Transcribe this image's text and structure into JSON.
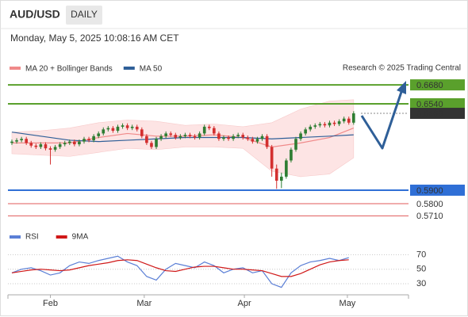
{
  "chart_data": {
    "type": "candlestick",
    "symbol": "AUD/USD",
    "period": "DAILY",
    "date": "Monday, May 5, 2025 10:08:16 AM CET",
    "credit": "Research © 2025 Trading Central",
    "up_color": "#2e7d32",
    "down_color": "#d32f2f",
    "xlim": [
      -0.82,
      82.4
    ],
    "ylim": [
      0.5665,
      0.6751
    ],
    "xticks": [
      {
        "value": 8,
        "label": "Feb"
      },
      {
        "value": 27.5,
        "label": "Mar"
      },
      {
        "value": 48.3,
        "label": "Apr"
      },
      {
        "value": 69.7,
        "label": "May"
      }
    ],
    "candles": [
      [
        0.625,
        0.6275,
        0.6235,
        0.626
      ],
      [
        0.626,
        0.6285,
        0.6245,
        0.627
      ],
      [
        0.627,
        0.6295,
        0.6255,
        0.628
      ],
      [
        0.628,
        0.6295,
        0.6235,
        0.625
      ],
      [
        0.625,
        0.6265,
        0.6215,
        0.623
      ],
      [
        0.623,
        0.6245,
        0.6205,
        0.622
      ],
      [
        0.622,
        0.6255,
        0.6205,
        0.624
      ],
      [
        0.624,
        0.6255,
        0.6195,
        0.621
      ],
      [
        0.621,
        0.6225,
        0.609,
        0.62
      ],
      [
        0.62,
        0.6235,
        0.6185,
        0.622
      ],
      [
        0.622,
        0.6255,
        0.6205,
        0.624
      ],
      [
        0.624,
        0.6265,
        0.6225,
        0.625
      ],
      [
        0.625,
        0.6275,
        0.6235,
        0.626
      ],
      [
        0.626,
        0.6275,
        0.6225,
        0.624
      ],
      [
        0.624,
        0.6275,
        0.6225,
        0.626
      ],
      [
        0.626,
        0.6295,
        0.6245,
        0.628
      ],
      [
        0.628,
        0.6295,
        0.6255,
        0.627
      ],
      [
        0.627,
        0.6315,
        0.6255,
        0.63
      ],
      [
        0.63,
        0.6335,
        0.6285,
        0.632
      ],
      [
        0.632,
        0.6365,
        0.6305,
        0.635
      ],
      [
        0.635,
        0.6375,
        0.6335,
        0.636
      ],
      [
        0.636,
        0.6375,
        0.6325,
        0.634
      ],
      [
        0.634,
        0.6385,
        0.6325,
        0.637
      ],
      [
        0.637,
        0.6395,
        0.6355,
        0.638
      ],
      [
        0.638,
        0.6395,
        0.6345,
        0.636
      ],
      [
        0.636,
        0.6385,
        0.6345,
        0.637
      ],
      [
        0.637,
        0.6385,
        0.6335,
        0.635
      ],
      [
        0.635,
        0.6365,
        0.6285,
        0.63
      ],
      [
        0.63,
        0.6315,
        0.6235,
        0.625
      ],
      [
        0.625,
        0.6265,
        0.6205,
        0.622
      ],
      [
        0.622,
        0.6295,
        0.6205,
        0.628
      ],
      [
        0.628,
        0.6315,
        0.6265,
        0.63
      ],
      [
        0.63,
        0.6335,
        0.6285,
        0.632
      ],
      [
        0.632,
        0.6335,
        0.6295,
        0.631
      ],
      [
        0.631,
        0.6325,
        0.6275,
        0.629
      ],
      [
        0.629,
        0.6315,
        0.6275,
        0.63
      ],
      [
        0.63,
        0.6325,
        0.6285,
        0.631
      ],
      [
        0.631,
        0.6325,
        0.6285,
        0.63
      ],
      [
        0.63,
        0.6315,
        0.6275,
        0.629
      ],
      [
        0.629,
        0.6335,
        0.6275,
        0.632
      ],
      [
        0.632,
        0.6385,
        0.6305,
        0.637
      ],
      [
        0.637,
        0.6385,
        0.6345,
        0.636
      ],
      [
        0.636,
        0.6375,
        0.6305,
        0.632
      ],
      [
        0.632,
        0.6335,
        0.6265,
        0.628
      ],
      [
        0.628,
        0.6305,
        0.6265,
        0.629
      ],
      [
        0.629,
        0.6305,
        0.6265,
        0.628
      ],
      [
        0.628,
        0.6315,
        0.6265,
        0.63
      ],
      [
        0.63,
        0.6325,
        0.6285,
        0.631
      ],
      [
        0.631,
        0.6325,
        0.6275,
        0.629
      ],
      [
        0.629,
        0.6305,
        0.6265,
        0.628
      ],
      [
        0.628,
        0.6295,
        0.6245,
        0.626
      ],
      [
        0.626,
        0.6295,
        0.6245,
        0.628
      ],
      [
        0.628,
        0.6315,
        0.6265,
        0.63
      ],
      [
        0.63,
        0.6315,
        0.6205,
        0.622
      ],
      [
        0.622,
        0.6235,
        0.6,
        0.606
      ],
      [
        0.606,
        0.609,
        0.591,
        0.597
      ],
      [
        0.597,
        0.603,
        0.5915,
        0.6
      ],
      [
        0.6,
        0.6135,
        0.5985,
        0.612
      ],
      [
        0.612,
        0.6215,
        0.6105,
        0.62
      ],
      [
        0.62,
        0.6295,
        0.6185,
        0.628
      ],
      [
        0.628,
        0.6335,
        0.6265,
        0.632
      ],
      [
        0.632,
        0.6365,
        0.6305,
        0.635
      ],
      [
        0.635,
        0.6385,
        0.6335,
        0.637
      ],
      [
        0.637,
        0.6395,
        0.6355,
        0.638
      ],
      [
        0.638,
        0.6405,
        0.6365,
        0.639
      ],
      [
        0.639,
        0.6405,
        0.6365,
        0.638
      ],
      [
        0.638,
        0.6415,
        0.6365,
        0.64
      ],
      [
        0.64,
        0.6415,
        0.6375,
        0.639
      ],
      [
        0.639,
        0.6425,
        0.6375,
        0.641
      ],
      [
        0.641,
        0.6445,
        0.6395,
        0.643
      ],
      [
        0.643,
        0.6445,
        0.6385,
        0.64
      ],
      [
        0.64,
        0.6485,
        0.6385,
        0.6469
      ]
    ],
    "bands": {
      "color": "#fde4e4",
      "x": [
        0,
        6,
        12,
        18,
        24,
        30,
        36,
        42,
        48,
        54,
        60,
        66,
        71
      ],
      "upper": [
        0.633,
        0.634,
        0.636,
        0.64,
        0.642,
        0.641,
        0.638,
        0.639,
        0.637,
        0.64,
        0.65,
        0.656,
        0.657
      ],
      "lower": [
        0.617,
        0.616,
        0.615,
        0.618,
        0.621,
        0.62,
        0.622,
        0.622,
        0.621,
        0.604,
        0.6,
        0.602,
        0.614
      ]
    },
    "series": [
      {
        "name": "MA 20 + Bollinger Bands",
        "color": "#f08a8a",
        "x": [
          0,
          6,
          12,
          18,
          24,
          30,
          36,
          42,
          48,
          54,
          60,
          66,
          71
        ],
        "values": [
          0.625,
          0.625,
          0.625,
          0.629,
          0.632,
          0.63,
          0.63,
          0.631,
          0.629,
          0.622,
          0.625,
          0.629,
          0.636
        ]
      },
      {
        "name": "MA 50",
        "color": "#2f5f98",
        "x": [
          0,
          6,
          12,
          18,
          24,
          30,
          36,
          42,
          48,
          54,
          60,
          66,
          71
        ],
        "values": [
          0.633,
          0.63,
          0.627,
          0.626,
          0.627,
          0.628,
          0.629,
          0.629,
          0.629,
          0.628,
          0.629,
          0.63,
          0.631
        ]
      }
    ],
    "levels": [
      {
        "value": 0.668,
        "label": "0.6680",
        "color": "#5aa02c",
        "box": true
      },
      {
        "value": 0.654,
        "label": "0.6540",
        "color": "#5aa02c",
        "box": true
      },
      {
        "value": 0.59,
        "label": "0.5900",
        "color": "#2f6fd6",
        "box": true
      },
      {
        "value": 0.58,
        "label": "0.5800",
        "color": "#e05a5a",
        "box": false
      },
      {
        "value": 0.571,
        "label": "0.5710",
        "color": "#e05a5a",
        "box": false
      }
    ],
    "last": 0.6469,
    "last_color": "#333333",
    "rsi": {
      "ylim": [
        18,
        77
      ],
      "yticks": [
        30,
        50,
        70
      ],
      "series": [
        {
          "name": "RSI",
          "color": "#5b7fd6",
          "x": [
            0,
            2,
            4,
            6,
            8,
            10,
            12,
            14,
            16,
            18,
            20,
            22,
            24,
            26,
            28,
            30,
            32,
            34,
            36,
            38,
            40,
            42,
            44,
            46,
            48,
            50,
            52,
            54,
            56,
            58,
            60,
            62,
            64,
            66,
            68,
            70
          ],
          "values": [
            45,
            50,
            52,
            48,
            42,
            45,
            55,
            60,
            58,
            62,
            65,
            68,
            60,
            55,
            40,
            35,
            50,
            58,
            55,
            52,
            60,
            55,
            45,
            50,
            52,
            45,
            48,
            30,
            25,
            45,
            55,
            60,
            62,
            65,
            62,
            66
          ]
        },
        {
          "name": "9MA",
          "color": "#d01818",
          "x": [
            0,
            2,
            4,
            6,
            8,
            10,
            12,
            14,
            16,
            18,
            20,
            22,
            24,
            26,
            28,
            30,
            32,
            34,
            36,
            38,
            40,
            42,
            44,
            46,
            48,
            50,
            52,
            54,
            56,
            58,
            60,
            62,
            64,
            66,
            68,
            70
          ],
          "values": [
            45,
            47,
            49,
            50,
            49,
            48,
            49,
            52,
            55,
            57,
            59,
            62,
            63,
            62,
            57,
            52,
            48,
            47,
            50,
            53,
            54,
            54,
            52,
            50,
            50,
            49,
            48,
            44,
            40,
            40,
            44,
            50,
            56,
            60,
            62,
            63
          ]
        }
      ]
    }
  }
}
